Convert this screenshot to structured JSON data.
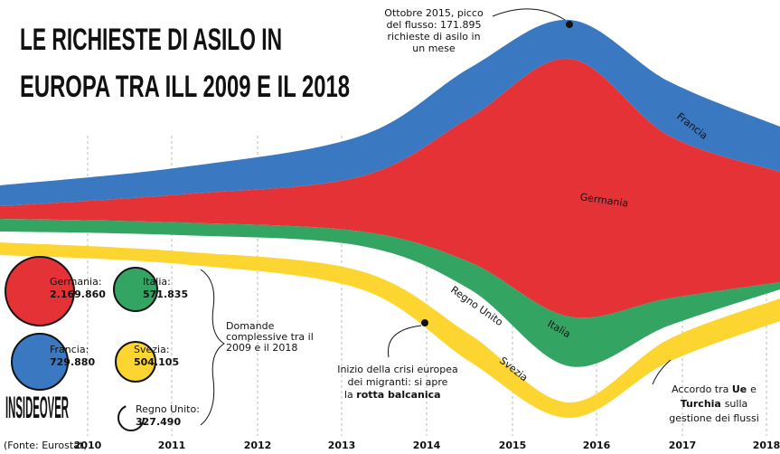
{
  "chart_data": {
    "type": "streamgraph",
    "title": [
      "LE RICHIESTE DI ASILO IN",
      "EUROPA TRA ILL 2009 E IL 2018"
    ],
    "categories": [
      "2010",
      "2011",
      "2012",
      "2013",
      "2014",
      "2015",
      "2016",
      "2017",
      "2018"
    ],
    "source": "(Fonte: Eurostat)",
    "brand": "INSIDEOVER",
    "series": [
      {
        "name": "Francia",
        "color": "#3a79c1",
        "total_label": "Francia:",
        "total": "729.880"
      },
      {
        "name": "Germania",
        "color": "#e53237",
        "total_label": "Germania:",
        "total": "2.169.860"
      },
      {
        "name": "Italia",
        "color": "#34a463",
        "total_label": "Italia:",
        "total": "571.835"
      },
      {
        "name": "Regno Unito",
        "color": "#ffffff",
        "total_label": "Regno Unito:",
        "total": "327.490"
      },
      {
        "name": "Svezia",
        "color": "#fdd531",
        "total_label": "Svezia:",
        "total": "504.105"
      }
    ],
    "legend_note": [
      "Domande",
      "complessive tra il",
      "2009 e il 2018"
    ],
    "annotations": {
      "peak": [
        "Ottobre 2015, picco",
        "del flusso: 171.895",
        "richieste di asilo in",
        "un mese"
      ],
      "crisis": [
        "Inizio della crisi europea",
        "dei migranti: si apre",
        "la",
        "rotta balcanica"
      ],
      "deal": [
        "Accordo tra",
        "Ue",
        "e",
        "Turchia",
        "sulla",
        "gestione dei flussi"
      ]
    }
  }
}
